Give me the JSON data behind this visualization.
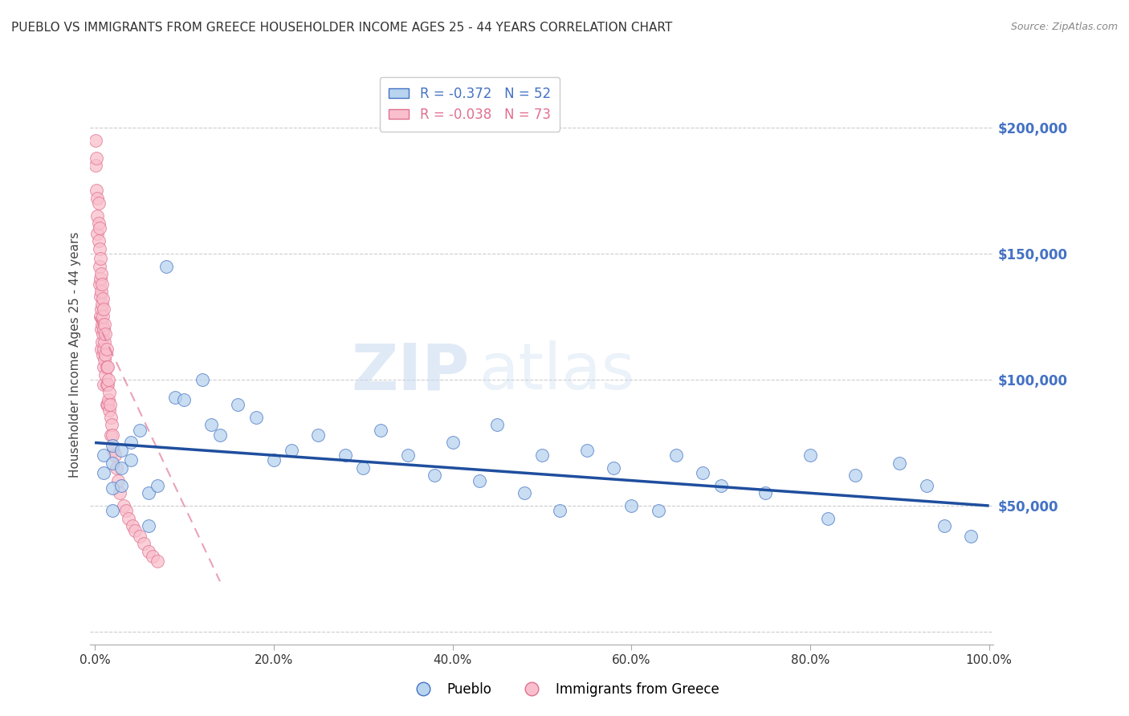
{
  "title": "PUEBLO VS IMMIGRANTS FROM GREECE HOUSEHOLDER INCOME AGES 25 - 44 YEARS CORRELATION CHART",
  "source": "Source: ZipAtlas.com",
  "ylabel": "Householder Income Ages 25 - 44 years",
  "xlim": [
    -0.005,
    1.005
  ],
  "ylim": [
    -5000,
    225000
  ],
  "yticks": [
    0,
    50000,
    100000,
    150000,
    200000
  ],
  "ytick_labels": [
    "",
    "$50,000",
    "$100,000",
    "$150,000",
    "$200,000"
  ],
  "xtick_labels": [
    "0.0%",
    "20.0%",
    "40.0%",
    "60.0%",
    "80.0%",
    "100.0%"
  ],
  "xticks": [
    0.0,
    0.2,
    0.4,
    0.6,
    0.8,
    1.0
  ],
  "pueblo_color": "#b8d4ee",
  "greece_color": "#f9bfcc",
  "pueblo_edge_color": "#4472c4",
  "greece_edge_color": "#e07090",
  "trend_pueblo_color": "#1f4e9e",
  "trend_greece_color": "#e07090",
  "legend_pueblo_label": "Pueblo",
  "legend_greece_label": "Immigrants from Greece",
  "r_pueblo": -0.372,
  "n_pueblo": 52,
  "r_greece": -0.038,
  "n_greece": 73,
  "watermark_zip": "ZIP",
  "watermark_atlas": "atlas",
  "title_color": "#4472c4",
  "source_color": "#888888",
  "yaxis_tick_color": "#4472c4",
  "grid_color": "#cccccc",
  "pueblo_x": [
    0.01,
    0.01,
    0.02,
    0.02,
    0.02,
    0.02,
    0.03,
    0.03,
    0.03,
    0.04,
    0.04,
    0.05,
    0.06,
    0.06,
    0.07,
    0.08,
    0.09,
    0.1,
    0.12,
    0.13,
    0.14,
    0.16,
    0.18,
    0.2,
    0.22,
    0.25,
    0.28,
    0.3,
    0.32,
    0.35,
    0.38,
    0.4,
    0.43,
    0.45,
    0.48,
    0.5,
    0.52,
    0.55,
    0.58,
    0.6,
    0.63,
    0.65,
    0.68,
    0.7,
    0.75,
    0.8,
    0.82,
    0.85,
    0.9,
    0.93,
    0.95,
    0.98
  ],
  "pueblo_y": [
    70000,
    63000,
    74000,
    67000,
    57000,
    48000,
    72000,
    65000,
    58000,
    75000,
    68000,
    80000,
    55000,
    42000,
    58000,
    145000,
    93000,
    92000,
    100000,
    82000,
    78000,
    90000,
    85000,
    68000,
    72000,
    78000,
    70000,
    65000,
    80000,
    70000,
    62000,
    75000,
    60000,
    82000,
    55000,
    70000,
    48000,
    72000,
    65000,
    50000,
    48000,
    70000,
    63000,
    58000,
    55000,
    70000,
    45000,
    62000,
    67000,
    58000,
    42000,
    38000
  ],
  "greece_x": [
    0.001,
    0.001,
    0.002,
    0.002,
    0.003,
    0.003,
    0.003,
    0.004,
    0.004,
    0.004,
    0.005,
    0.005,
    0.005,
    0.005,
    0.006,
    0.006,
    0.006,
    0.006,
    0.007,
    0.007,
    0.007,
    0.007,
    0.007,
    0.008,
    0.008,
    0.008,
    0.008,
    0.009,
    0.009,
    0.009,
    0.009,
    0.01,
    0.01,
    0.01,
    0.01,
    0.01,
    0.011,
    0.011,
    0.011,
    0.012,
    0.012,
    0.012,
    0.013,
    0.013,
    0.013,
    0.013,
    0.014,
    0.014,
    0.014,
    0.015,
    0.015,
    0.016,
    0.016,
    0.017,
    0.018,
    0.018,
    0.019,
    0.02,
    0.021,
    0.022,
    0.024,
    0.026,
    0.028,
    0.032,
    0.035,
    0.038,
    0.042,
    0.045,
    0.05,
    0.055,
    0.06,
    0.065,
    0.07
  ],
  "greece_y": [
    195000,
    185000,
    188000,
    175000,
    172000,
    165000,
    158000,
    170000,
    162000,
    155000,
    160000,
    152000,
    145000,
    138000,
    148000,
    140000,
    133000,
    125000,
    142000,
    135000,
    128000,
    120000,
    112000,
    138000,
    130000,
    122000,
    115000,
    132000,
    125000,
    118000,
    110000,
    128000,
    120000,
    112000,
    105000,
    98000,
    122000,
    115000,
    108000,
    118000,
    110000,
    102000,
    112000,
    105000,
    98000,
    90000,
    105000,
    98000,
    90000,
    100000,
    92000,
    95000,
    88000,
    90000,
    85000,
    78000,
    82000,
    78000,
    72000,
    70000,
    65000,
    60000,
    55000,
    50000,
    48000,
    45000,
    42000,
    40000,
    38000,
    35000,
    32000,
    30000,
    28000
  ]
}
